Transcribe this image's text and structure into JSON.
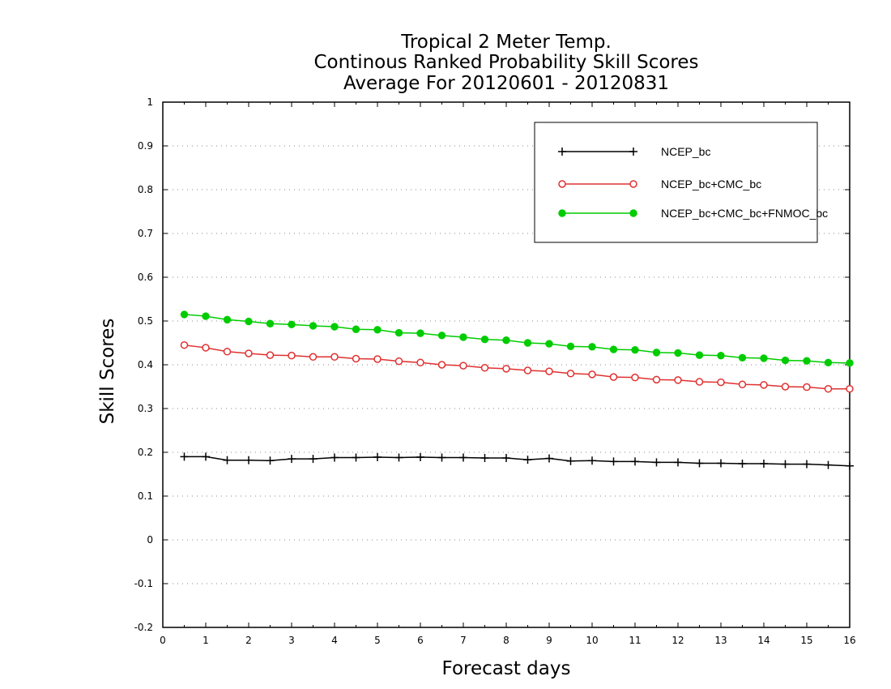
{
  "chart_data": {
    "type": "line",
    "title": [
      "Tropical 2 Meter Temp.",
      "Continous Ranked Probability Skill Scores",
      "Average For 20120601 - 20120831"
    ],
    "xlabel": "Forecast days",
    "ylabel": "Skill Scores",
    "xlim": [
      0,
      16
    ],
    "ylim": [
      -0.2,
      1
    ],
    "xticks": [
      0,
      1,
      2,
      3,
      4,
      5,
      6,
      7,
      8,
      9,
      10,
      11,
      12,
      13,
      14,
      15,
      16
    ],
    "xtick_labels": [
      "0",
      "1",
      "2",
      "3",
      "4",
      "5",
      "6",
      "7",
      "8",
      "9",
      "10",
      "11",
      "12",
      "13",
      "14",
      "15",
      "16"
    ],
    "yticks": [
      -0.2,
      -0.1,
      0,
      0.1,
      0.2,
      0.3,
      0.4,
      0.5,
      0.6,
      0.7,
      0.8,
      0.9,
      1
    ],
    "ytick_labels": [
      "-0.2",
      "-0.1",
      "0",
      "0.1",
      "0.2",
      "0.3",
      "0.4",
      "0.5",
      "0.6",
      "0.7",
      "0.8",
      "0.9",
      "1"
    ],
    "grid": "horizontal dotted",
    "legend_position": "top-right",
    "x": [
      0.5,
      1,
      1.5,
      2,
      2.5,
      3,
      3.5,
      4,
      4.5,
      5,
      5.5,
      6,
      6.5,
      7,
      7.5,
      8,
      8.5,
      9,
      9.5,
      10,
      10.5,
      11,
      11.5,
      12,
      12.5,
      13,
      13.5,
      14,
      14.5,
      15,
      15.5,
      16
    ],
    "series": [
      {
        "name": "NCEP_bc",
        "color": "#000000",
        "marker": "plus",
        "values": [
          0.19,
          0.19,
          0.182,
          0.182,
          0.181,
          0.185,
          0.185,
          0.188,
          0.188,
          0.189,
          0.188,
          0.189,
          0.188,
          0.188,
          0.187,
          0.187,
          0.183,
          0.186,
          0.18,
          0.181,
          0.179,
          0.179,
          0.177,
          0.177,
          0.175,
          0.175,
          0.174,
          0.174,
          0.173,
          0.173,
          0.171,
          0.169
        ]
      },
      {
        "name": "NCEP_bc+CMC_bc",
        "color": "#e03030",
        "marker": "open-circle",
        "values": [
          0.445,
          0.439,
          0.43,
          0.426,
          0.422,
          0.421,
          0.418,
          0.418,
          0.414,
          0.413,
          0.408,
          0.405,
          0.4,
          0.398,
          0.393,
          0.391,
          0.387,
          0.385,
          0.38,
          0.378,
          0.372,
          0.371,
          0.366,
          0.365,
          0.361,
          0.36,
          0.355,
          0.354,
          0.35,
          0.349,
          0.345,
          0.345
        ]
      },
      {
        "name": "NCEP_bc+CMC_bc+FNMOC_bc",
        "color": "#00cc00",
        "marker": "filled-circle",
        "values": [
          0.515,
          0.511,
          0.503,
          0.499,
          0.494,
          0.492,
          0.489,
          0.487,
          0.481,
          0.48,
          0.473,
          0.472,
          0.467,
          0.463,
          0.458,
          0.456,
          0.45,
          0.448,
          0.442,
          0.441,
          0.435,
          0.434,
          0.428,
          0.427,
          0.422,
          0.421,
          0.416,
          0.415,
          0.41,
          0.409,
          0.405,
          0.404
        ]
      }
    ]
  }
}
